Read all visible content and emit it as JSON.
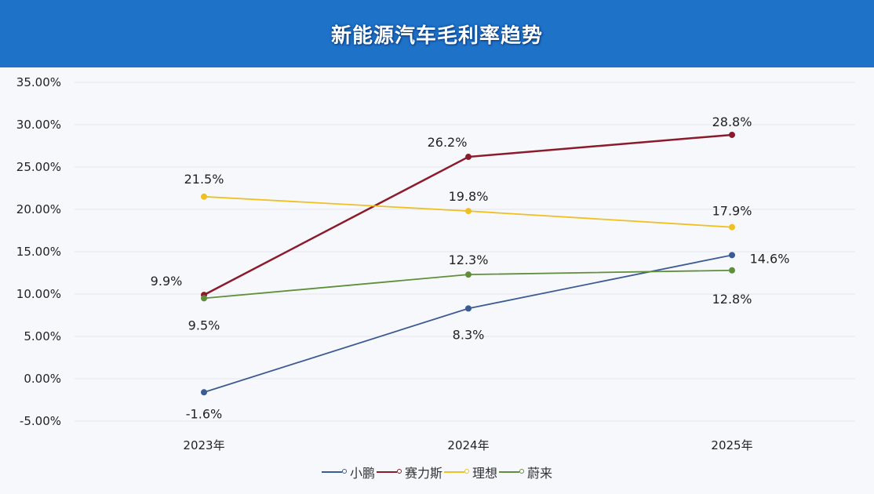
{
  "header": {
    "title": "新能源汽车毛利率趋势"
  },
  "colors": {
    "header_bg": "#1e72c8",
    "小鹏": "#3b5b93",
    "赛力斯": "#8b1a2b",
    "理想": "#f0c020",
    "蔚来": "#5f8f3a"
  },
  "legend": [
    {
      "label": "小鹏",
      "color": "#3b5b93"
    },
    {
      "label": "赛力斯",
      "color": "#8b1a2b"
    },
    {
      "label": "理想",
      "color": "#f0c020"
    },
    {
      "label": "蔚来",
      "color": "#5f8f3a"
    }
  ],
  "chart_data": {
    "type": "line",
    "title": "新能源汽车毛利率趋势",
    "xlabel": "",
    "ylabel": "",
    "categories": [
      "2023年",
      "2024年",
      "2025年"
    ],
    "y_ticks": [
      "-5.00%",
      "0.00%",
      "5.00%",
      "10.00%",
      "15.00%",
      "20.00%",
      "25.00%",
      "30.00%",
      "35.00%"
    ],
    "ylim": [
      -5,
      35
    ],
    "grid": true,
    "legend_position": "bottom",
    "series": [
      {
        "name": "小鹏",
        "values": [
          -1.6,
          8.3,
          14.6
        ],
        "labels": [
          "-1.6%",
          "8.3%",
          "14.6%"
        ]
      },
      {
        "name": "赛力斯",
        "values": [
          9.9,
          26.2,
          28.8
        ],
        "labels": [
          "9.9%",
          "26.2%",
          "28.8%"
        ]
      },
      {
        "name": "理想",
        "values": [
          21.5,
          19.8,
          17.9
        ],
        "labels": [
          "21.5%",
          "19.8%",
          "17.9%"
        ]
      },
      {
        "name": "蔚来",
        "values": [
          9.5,
          12.3,
          12.8
        ],
        "labels": [
          "9.5%",
          "12.3%",
          "12.8%"
        ]
      }
    ]
  }
}
